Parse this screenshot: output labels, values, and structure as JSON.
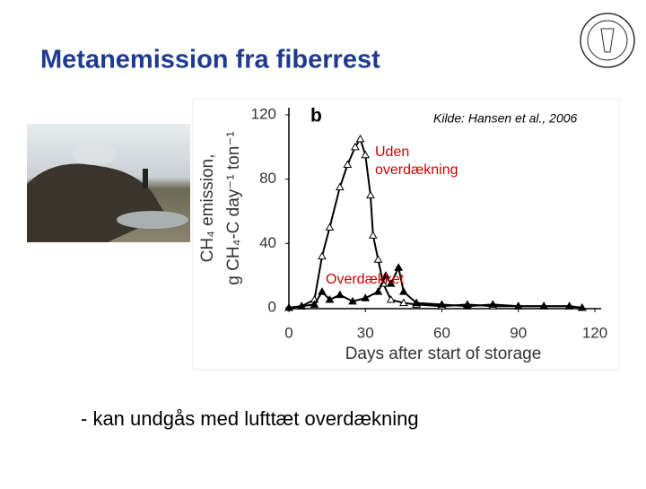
{
  "title": "Metanemission fra fiberrest",
  "bullet": "- kan undgås med lufttæt overdækning",
  "chart_data": {
    "type": "line",
    "panel_label": "b",
    "source": "Kilde:  Hansen et al., 2006",
    "ylabel": [
      "CH₄ emission,",
      "g CH₄-C day⁻¹ ton⁻¹"
    ],
    "xlabel": "Days after start of storage",
    "xlim": [
      0,
      120
    ],
    "xticks": [
      0,
      30,
      60,
      90,
      120
    ],
    "ylim": [
      0,
      120
    ],
    "yticks": [
      0,
      40,
      80,
      120
    ],
    "series": [
      {
        "name": [
          "Uden",
          "overdækning"
        ],
        "color": "#000000",
        "label_color": "#cc0000",
        "marker": "open",
        "x": [
          0,
          5,
          10,
          13,
          16,
          20,
          23,
          26,
          28,
          30,
          32,
          33,
          35,
          37,
          40,
          45,
          50,
          60,
          70,
          80,
          90,
          100,
          110,
          115
        ],
        "values": [
          0,
          1,
          5,
          32,
          50,
          75,
          89,
          100,
          105,
          95,
          70,
          45,
          30,
          15,
          5,
          3,
          2,
          1,
          2,
          1,
          1,
          1,
          1,
          0
        ]
      },
      {
        "name": [
          "Overdækket"
        ],
        "color": "#000000",
        "label_color": "#cc0000",
        "marker": "filled",
        "x": [
          0,
          5,
          10,
          13,
          16,
          20,
          25,
          30,
          35,
          38,
          40,
          43,
          45,
          50,
          60,
          70,
          80,
          90,
          100,
          110,
          115
        ],
        "values": [
          0,
          1,
          2,
          10,
          5,
          8,
          4,
          6,
          10,
          20,
          15,
          25,
          10,
          3,
          2,
          1,
          2,
          1,
          1,
          1,
          0
        ]
      }
    ]
  }
}
